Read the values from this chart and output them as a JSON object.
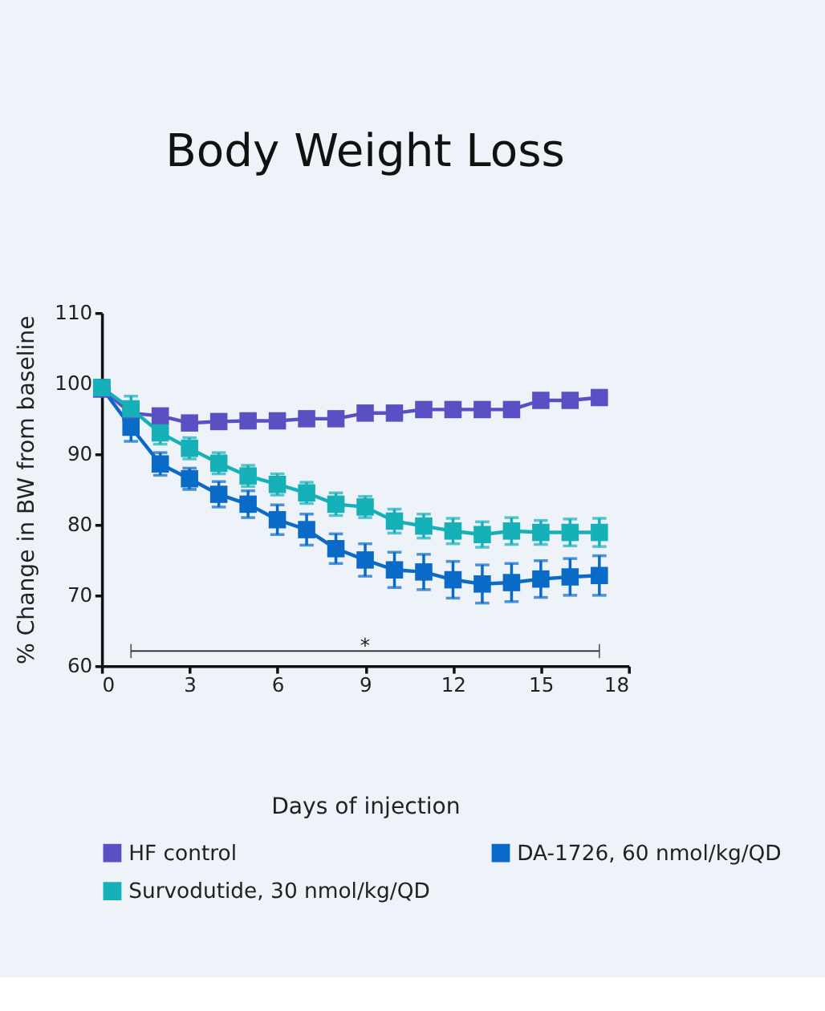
{
  "chart_data": {
    "type": "line",
    "title": "Body Weight Loss",
    "xlabel": "Days of injection",
    "ylabel": "% Change in BW from baseline",
    "x": [
      0,
      1,
      2,
      3,
      4,
      5,
      6,
      7,
      8,
      9,
      10,
      11,
      12,
      13,
      14,
      15,
      16,
      17
    ],
    "xlim": [
      0,
      18
    ],
    "xticks": [
      0,
      3,
      6,
      9,
      12,
      15,
      18
    ],
    "ylim": [
      60,
      110
    ],
    "yticks": [
      60,
      70,
      80,
      90,
      100,
      110
    ],
    "marker": "square",
    "grid": false,
    "legend": "bottom",
    "series": [
      {
        "name": "HF control",
        "color": "#5b4fc4",
        "values": [
          99.2,
          95.8,
          95.4,
          94.4,
          94.6,
          94.7,
          94.7,
          95.0,
          95.0,
          95.8,
          95.8,
          96.3,
          96.3,
          96.3,
          96.3,
          97.6,
          97.6,
          98.0
        ],
        "errors": [
          0.6,
          0.6,
          0.6,
          0.5,
          0.5,
          0.5,
          0.5,
          0.5,
          0.5,
          0.6,
          0.6,
          0.9,
          0.9,
          0.6,
          0.6,
          0.9,
          0.9,
          0.9
        ]
      },
      {
        "name": "DA-1726, 60 nmol/kg/QD",
        "color": "#0a6ac8",
        "values": [
          99.4,
          93.8,
          88.6,
          86.5,
          84.3,
          82.9,
          80.7,
          79.3,
          76.6,
          75.0,
          73.6,
          73.3,
          72.2,
          71.6,
          71.8,
          72.3,
          72.6,
          72.8
        ],
        "errors": [
          1.0,
          2.0,
          1.6,
          1.5,
          1.8,
          1.9,
          2.1,
          2.2,
          2.1,
          2.3,
          2.5,
          2.5,
          2.6,
          2.7,
          2.7,
          2.6,
          2.6,
          2.8
        ]
      },
      {
        "name": "Survodutide, 30 nmol/kg/QD",
        "color": "#16b0b8",
        "values": [
          99.4,
          96.4,
          93.0,
          90.8,
          88.7,
          86.9,
          85.7,
          84.5,
          82.9,
          82.5,
          80.5,
          79.8,
          79.1,
          78.6,
          79.1,
          78.9,
          78.9,
          78.9
        ],
        "errors": [
          0.8,
          1.8,
          1.6,
          1.5,
          1.5,
          1.5,
          1.5,
          1.5,
          1.6,
          1.5,
          1.7,
          1.7,
          1.8,
          1.8,
          1.9,
          1.7,
          1.9,
          2.0
        ]
      }
    ],
    "ref_lines": [
      {
        "axis": "y",
        "value": 62.1,
        "label": "*",
        "color": "#222222"
      }
    ]
  }
}
